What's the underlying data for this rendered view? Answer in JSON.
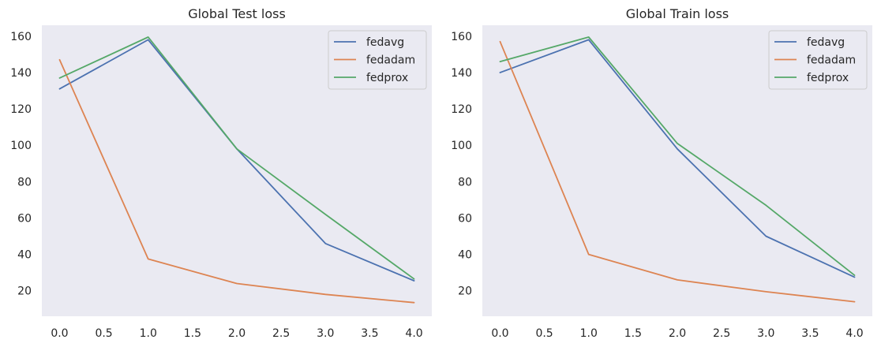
{
  "chart_data": [
    {
      "type": "line",
      "title": "Global Test loss",
      "xlabel": "",
      "ylabel": "",
      "xlim": [
        -0.2,
        4.2
      ],
      "ylim": [
        6,
        166
      ],
      "xticks": [
        "0.0",
        "0.5",
        "1.0",
        "1.5",
        "2.0",
        "2.5",
        "3.0",
        "3.5",
        "4.0"
      ],
      "yticks": [
        "20",
        "40",
        "60",
        "80",
        "100",
        "120",
        "140",
        "160"
      ],
      "grid": false,
      "legend": "top-right",
      "x": [
        0,
        1,
        2,
        3,
        4
      ],
      "series": [
        {
          "name": "fedavg",
          "color": "#4c72b0",
          "values": [
            131,
            158,
            98,
            46,
            25.5
          ]
        },
        {
          "name": "fedadam",
          "color": "#dd8452",
          "values": [
            147,
            37.5,
            24,
            18,
            13.5
          ]
        },
        {
          "name": "fedprox",
          "color": "#55a868",
          "values": [
            137,
            159.5,
            98,
            62,
            26.5
          ]
        }
      ]
    },
    {
      "type": "line",
      "title": "Global Train loss",
      "xlabel": "",
      "ylabel": "",
      "xlim": [
        -0.2,
        4.2
      ],
      "ylim": [
        6,
        166
      ],
      "xticks": [
        "0.0",
        "0.5",
        "1.0",
        "1.5",
        "2.0",
        "2.5",
        "3.0",
        "3.5",
        "4.0"
      ],
      "yticks": [
        "20",
        "40",
        "60",
        "80",
        "100",
        "120",
        "140",
        "160"
      ],
      "grid": false,
      "legend": "top-right",
      "x": [
        0,
        1,
        2,
        3,
        4
      ],
      "series": [
        {
          "name": "fedavg",
          "color": "#4c72b0",
          "values": [
            140,
            158,
            98,
            50,
            27.5
          ]
        },
        {
          "name": "fedadam",
          "color": "#dd8452",
          "values": [
            157,
            40,
            26,
            19.5,
            14
          ]
        },
        {
          "name": "fedprox",
          "color": "#55a868",
          "values": [
            146,
            159.5,
            101,
            67,
            28.5
          ]
        }
      ]
    }
  ]
}
